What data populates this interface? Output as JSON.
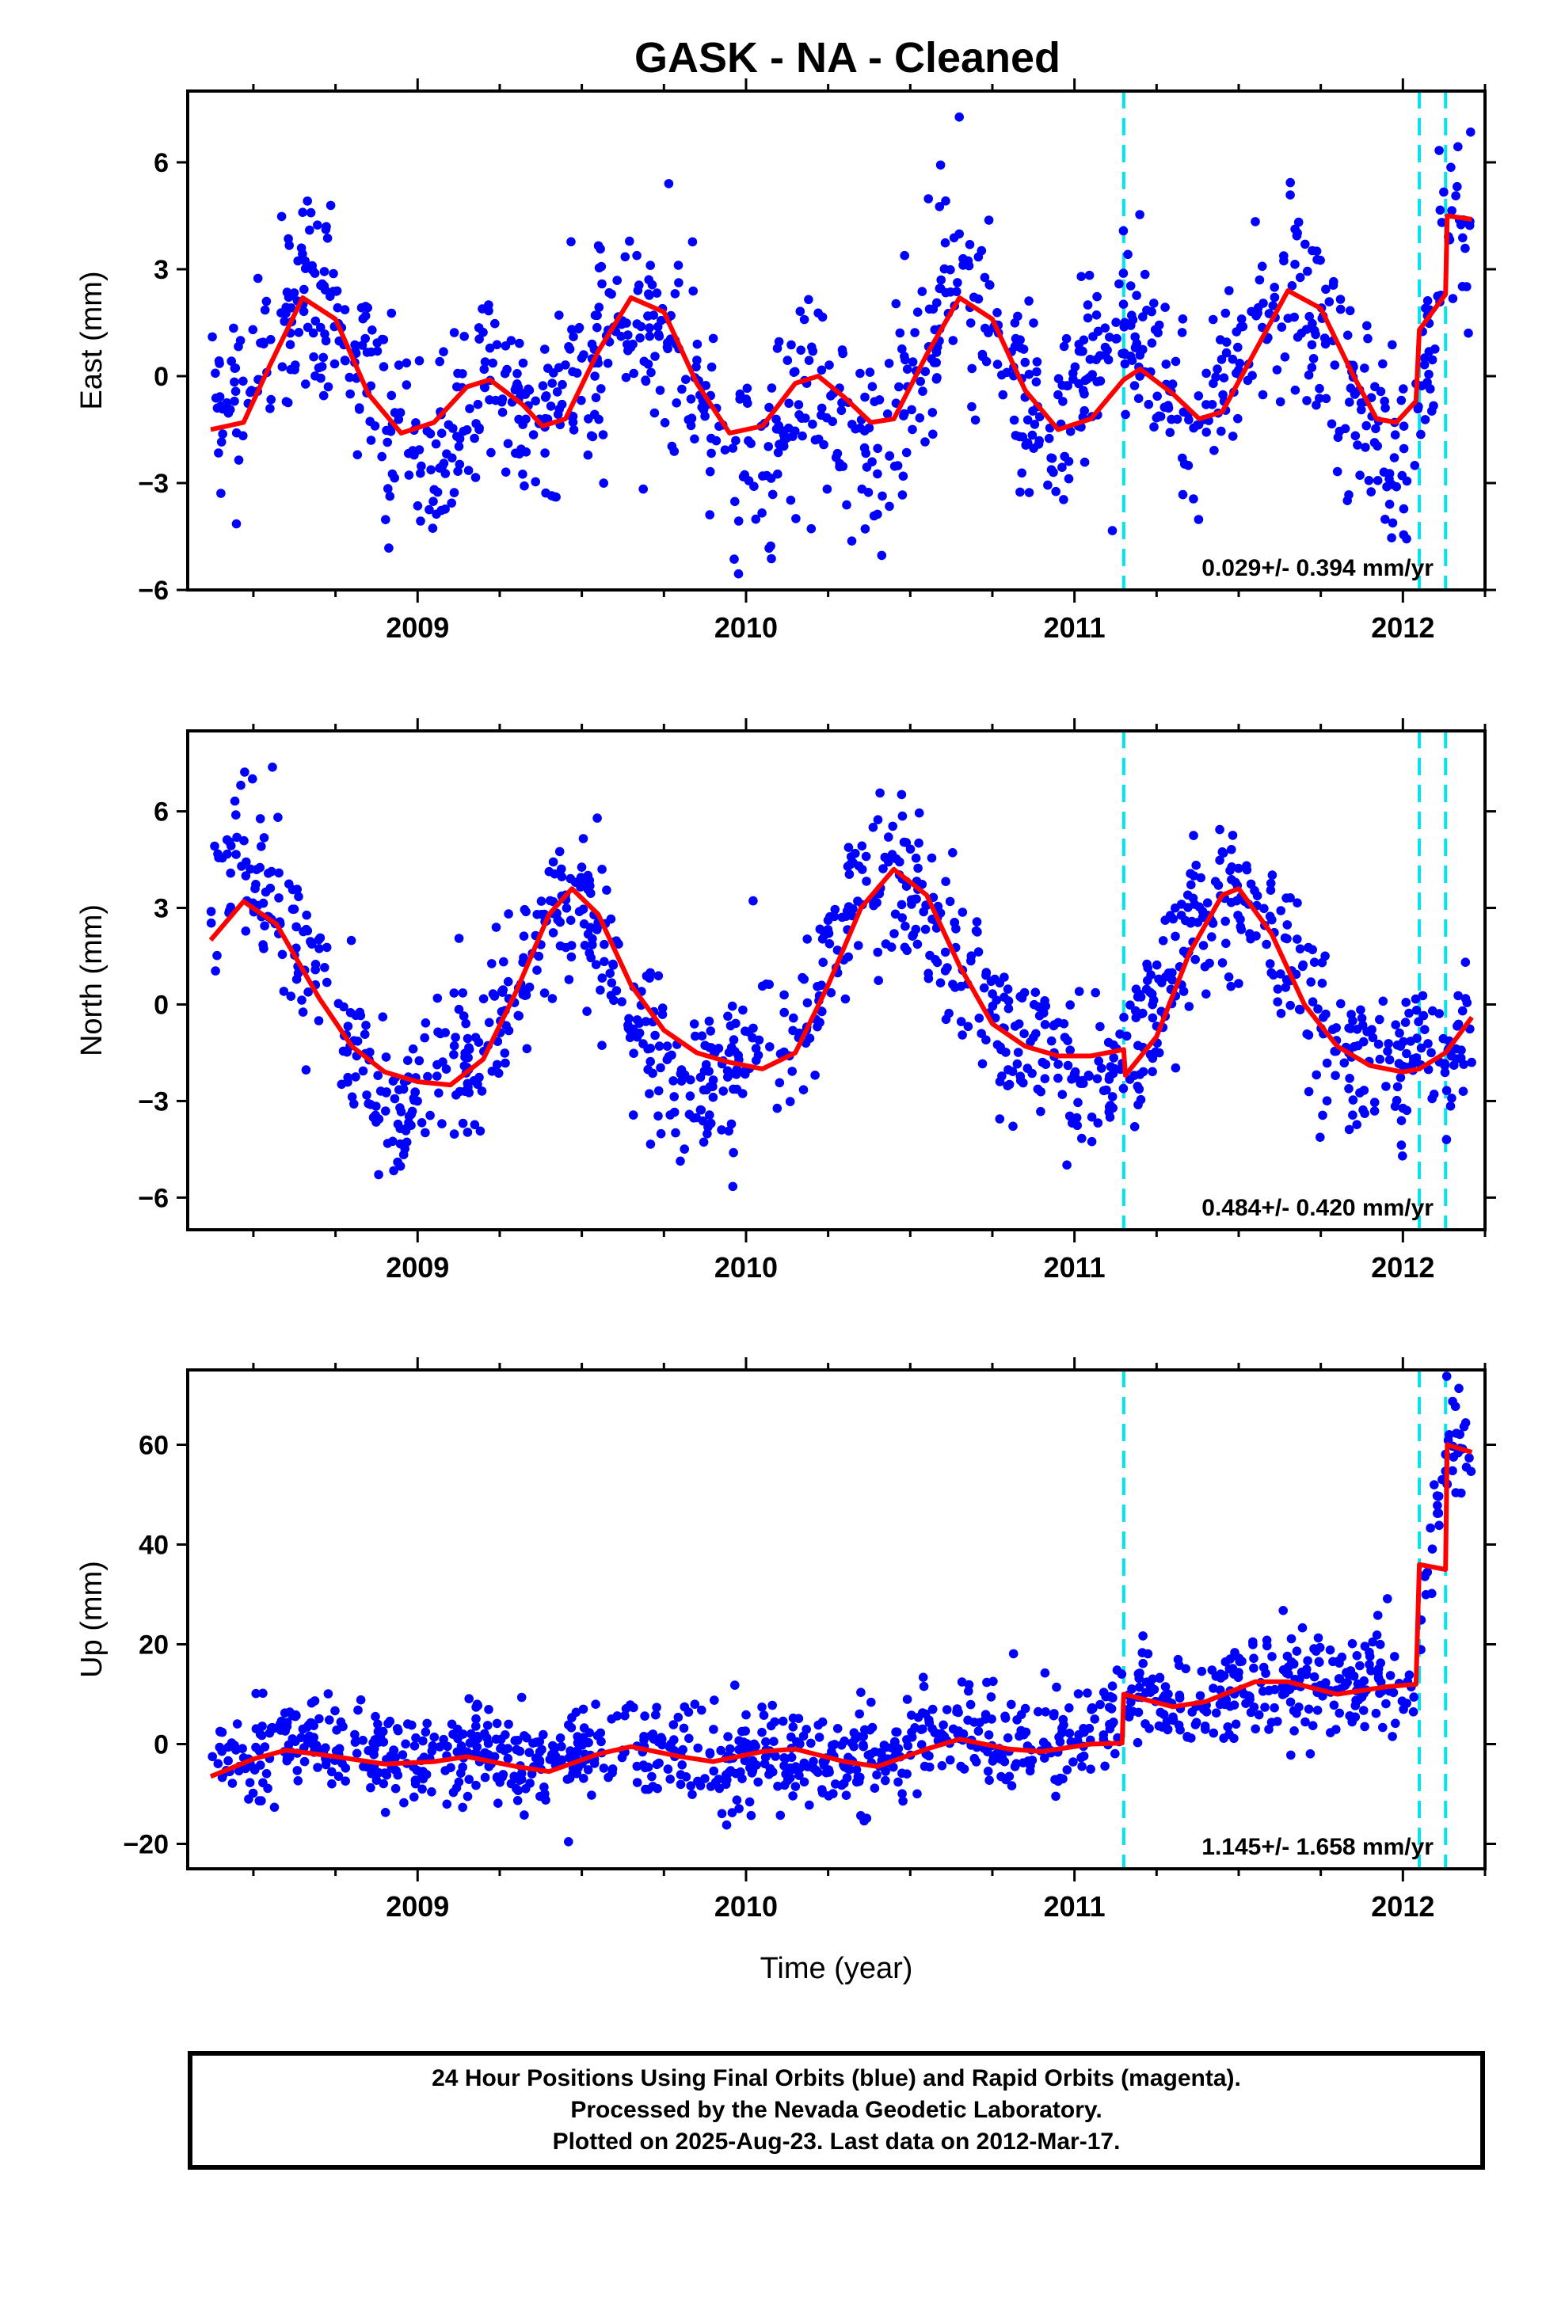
{
  "title": "GASK  - NA - Cleaned",
  "xlabel": "Time (year)",
  "footer": {
    "lines": [
      "24 Hour Positions Using Final Orbits (blue) and Rapid Orbits (magenta).",
      "Processed by the Nevada Geodetic Laboratory.",
      "Plotted on 2025-Aug-23. Last data on 2012-Mar-17."
    ]
  },
  "colors": {
    "points": "#0000ff",
    "model": "#ff0000",
    "offsets": "#00e5ee",
    "frame": "#000000"
  },
  "chart_data": [
    {
      "type": "scatter",
      "panel": "east",
      "ylabel": "East (mm)",
      "xlim": [
        2008.3,
        2012.25
      ],
      "ylim": [
        -6,
        8
      ],
      "yticks": [
        -6,
        -3,
        0,
        3,
        6
      ],
      "xticks": [
        2009,
        2010,
        2011,
        2012
      ],
      "xtick_labels": [
        "2009",
        "2010",
        "2011",
        "2012"
      ],
      "rate": "0.029+/- 0.394 mm/yr",
      "offsets": [
        2011.15,
        2012.05,
        2012.13
      ],
      "data_start": 2008.37,
      "data_end": 2012.21,
      "scatter_sigma": 1.35,
      "model": [
        [
          2008.37,
          -1.5
        ],
        [
          2008.47,
          -1.3
        ],
        [
          2008.55,
          0.3
        ],
        [
          2008.65,
          2.2
        ],
        [
          2008.75,
          1.6
        ],
        [
          2008.85,
          -0.5
        ],
        [
          2008.95,
          -1.6
        ],
        [
          2009.05,
          -1.3
        ],
        [
          2009.15,
          -0.3
        ],
        [
          2009.22,
          -0.1
        ],
        [
          2009.32,
          -0.8
        ],
        [
          2009.38,
          -1.4
        ],
        [
          2009.45,
          -1.2
        ],
        [
          2009.55,
          0.7
        ],
        [
          2009.65,
          2.2
        ],
        [
          2009.75,
          1.8
        ],
        [
          2009.85,
          -0.2
        ],
        [
          2009.95,
          -1.6
        ],
        [
          2010.05,
          -1.4
        ],
        [
          2010.15,
          -0.2
        ],
        [
          2010.22,
          0.0
        ],
        [
          2010.3,
          -0.6
        ],
        [
          2010.38,
          -1.3
        ],
        [
          2010.45,
          -1.2
        ],
        [
          2010.55,
          0.6
        ],
        [
          2010.65,
          2.2
        ],
        [
          2010.75,
          1.6
        ],
        [
          2010.85,
          -0.4
        ],
        [
          2010.95,
          -1.5
        ],
        [
          2011.05,
          -1.2
        ],
        [
          2011.15,
          -0.1
        ],
        [
          2011.2,
          0.2
        ],
        [
          2011.3,
          -0.5
        ],
        [
          2011.38,
          -1.2
        ],
        [
          2011.45,
          -1.0
        ],
        [
          2011.55,
          0.7
        ],
        [
          2011.65,
          2.4
        ],
        [
          2011.75,
          1.9
        ],
        [
          2011.85,
          0.0
        ],
        [
          2011.92,
          -1.2
        ],
        [
          2011.98,
          -1.3
        ],
        [
          2012.04,
          -0.7
        ],
        [
          2012.05,
          1.3
        ],
        [
          2012.13,
          2.3
        ],
        [
          2012.135,
          4.5
        ],
        [
          2012.21,
          4.4
        ]
      ],
      "clusters": [
        [
          2008.37,
          -1.3
        ],
        [
          2008.45,
          -0.4
        ],
        [
          2008.55,
          0.7
        ],
        [
          2008.65,
          2.0
        ],
        [
          2008.75,
          1.4
        ],
        [
          2008.85,
          0.1
        ],
        [
          2008.95,
          -1.3
        ],
        [
          2009.05,
          -2.0
        ],
        [
          2009.15,
          -0.6
        ],
        [
          2009.25,
          0.1
        ],
        [
          2009.35,
          -1.3
        ],
        [
          2009.45,
          -0.7
        ],
        [
          2009.55,
          0.9
        ],
        [
          2009.65,
          2.3
        ],
        [
          2009.75,
          1.6
        ],
        [
          2009.85,
          -0.2
        ],
        [
          2009.95,
          -2.2
        ],
        [
          2010.05,
          -3.0
        ],
        [
          2010.15,
          -0.6
        ],
        [
          2010.25,
          -0.7
        ],
        [
          2010.35,
          -2.2
        ],
        [
          2010.45,
          -1.3
        ],
        [
          2010.55,
          1.1
        ],
        [
          2010.65,
          3.0
        ],
        [
          2010.75,
          1.4
        ],
        [
          2010.85,
          -0.6
        ],
        [
          2010.95,
          -1.6
        ],
        [
          2011.05,
          0.2
        ],
        [
          2011.15,
          1.6
        ],
        [
          2011.25,
          0.6
        ],
        [
          2011.35,
          -1.6
        ],
        [
          2011.45,
          -0.3
        ],
        [
          2011.55,
          1.1
        ],
        [
          2011.65,
          2.1
        ],
        [
          2011.75,
          1.4
        ],
        [
          2011.85,
          -0.4
        ],
        [
          2011.95,
          -2.4
        ],
        [
          2012.03,
          -2.3
        ],
        [
          2012.13,
          4.5
        ],
        [
          2012.21,
          4.0
        ]
      ]
    },
    {
      "type": "scatter",
      "panel": "north",
      "ylabel": "North (mm)",
      "xlim": [
        2008.3,
        2012.25
      ],
      "ylim": [
        -7,
        8.5
      ],
      "yticks": [
        -6,
        -3,
        0,
        3,
        6
      ],
      "xticks": [
        2009,
        2010,
        2011,
        2012
      ],
      "xtick_labels": [
        "2009",
        "2010",
        "2011",
        "2012"
      ],
      "rate": "0.484+/- 0.420 mm/yr",
      "offsets": [
        2011.15,
        2012.05,
        2012.13
      ],
      "data_start": 2008.37,
      "data_end": 2012.21,
      "scatter_sigma": 1.2,
      "model": [
        [
          2008.37,
          2.0
        ],
        [
          2008.47,
          3.2
        ],
        [
          2008.57,
          2.5
        ],
        [
          2008.7,
          0.2
        ],
        [
          2008.8,
          -1.3
        ],
        [
          2008.9,
          -2.1
        ],
        [
          2009.0,
          -2.4
        ],
        [
          2009.1,
          -2.5
        ],
        [
          2009.2,
          -1.7
        ],
        [
          2009.3,
          0.4
        ],
        [
          2009.4,
          2.8
        ],
        [
          2009.47,
          3.6
        ],
        [
          2009.55,
          2.8
        ],
        [
          2009.65,
          0.6
        ],
        [
          2009.75,
          -0.8
        ],
        [
          2009.85,
          -1.5
        ],
        [
          2009.95,
          -1.8
        ],
        [
          2010.05,
          -2.0
        ],
        [
          2010.15,
          -1.5
        ],
        [
          2010.25,
          0.6
        ],
        [
          2010.35,
          3.0
        ],
        [
          2010.45,
          4.2
        ],
        [
          2010.55,
          3.4
        ],
        [
          2010.65,
          1.2
        ],
        [
          2010.75,
          -0.6
        ],
        [
          2010.85,
          -1.3
        ],
        [
          2010.95,
          -1.6
        ],
        [
          2011.05,
          -1.6
        ],
        [
          2011.15,
          -1.4
        ],
        [
          2011.155,
          -2.2
        ],
        [
          2011.25,
          -1.0
        ],
        [
          2011.35,
          1.6
        ],
        [
          2011.45,
          3.4
        ],
        [
          2011.5,
          3.6
        ],
        [
          2011.6,
          2.2
        ],
        [
          2011.7,
          0.0
        ],
        [
          2011.8,
          -1.3
        ],
        [
          2011.9,
          -1.9
        ],
        [
          2012.0,
          -2.1
        ],
        [
          2012.05,
          -2.0
        ],
        [
          2012.13,
          -1.5
        ],
        [
          2012.21,
          -0.4
        ]
      ],
      "clusters": [
        [
          2008.37,
          2.5
        ],
        [
          2008.45,
          4.8
        ],
        [
          2008.55,
          3.4
        ],
        [
          2008.65,
          1.6
        ],
        [
          2008.75,
          -0.1
        ],
        [
          2008.85,
          -2.2
        ],
        [
          2008.95,
          -3.2
        ],
        [
          2009.05,
          -2.4
        ],
        [
          2009.15,
          -1.6
        ],
        [
          2009.25,
          -0.5
        ],
        [
          2009.35,
          1.5
        ],
        [
          2009.45,
          3.6
        ],
        [
          2009.55,
          2.6
        ],
        [
          2009.65,
          -0.9
        ],
        [
          2009.75,
          -1.8
        ],
        [
          2009.85,
          -2.3
        ],
        [
          2009.95,
          -2.0
        ],
        [
          2010.05,
          -1.0
        ],
        [
          2010.15,
          -1.8
        ],
        [
          2010.25,
          1.6
        ],
        [
          2010.35,
          3.9
        ],
        [
          2010.45,
          4.0
        ],
        [
          2010.55,
          3.0
        ],
        [
          2010.65,
          1.4
        ],
        [
          2010.75,
          -0.5
        ],
        [
          2010.85,
          -1.6
        ],
        [
          2010.95,
          -1.3
        ],
        [
          2011.05,
          -2.6
        ],
        [
          2011.12,
          -2.0
        ],
        [
          2011.25,
          -0.1
        ],
        [
          2011.35,
          2.2
        ],
        [
          2011.45,
          3.6
        ],
        [
          2011.55,
          2.8
        ],
        [
          2011.65,
          1.2
        ],
        [
          2011.75,
          -0.3
        ],
        [
          2011.85,
          -1.3
        ],
        [
          2011.95,
          -1.8
        ],
        [
          2012.03,
          -1.4
        ],
        [
          2012.13,
          -2.0
        ],
        [
          2012.21,
          0.4
        ]
      ]
    },
    {
      "type": "scatter",
      "panel": "up",
      "ylabel": "Up (mm)",
      "xlim": [
        2008.3,
        2012.25
      ],
      "ylim": [
        -25,
        75
      ],
      "yticks": [
        -20,
        0,
        20,
        40,
        60
      ],
      "xticks": [
        2009,
        2010,
        2011,
        2012
      ],
      "xtick_labels": [
        "2009",
        "2010",
        "2011",
        "2012"
      ],
      "rate": "1.145+/- 1.658 mm/yr",
      "offsets": [
        2011.15,
        2012.05,
        2012.13
      ],
      "data_start": 2008.37,
      "data_end": 2012.21,
      "scatter_sigma": 5.0,
      "model": [
        [
          2008.37,
          -6.5
        ],
        [
          2008.5,
          -3.0
        ],
        [
          2008.6,
          -1.2
        ],
        [
          2008.75,
          -2.5
        ],
        [
          2008.9,
          -4.0
        ],
        [
          2009.05,
          -3.5
        ],
        [
          2009.15,
          -2.5
        ],
        [
          2009.3,
          -4.5
        ],
        [
          2009.4,
          -5.5
        ],
        [
          2009.55,
          -2.0
        ],
        [
          2009.65,
          -0.5
        ],
        [
          2009.8,
          -2.5
        ],
        [
          2009.9,
          -3.5
        ],
        [
          2010.05,
          -1.5
        ],
        [
          2010.15,
          -1.0
        ],
        [
          2010.3,
          -3.5
        ],
        [
          2010.4,
          -4.5
        ],
        [
          2010.55,
          -1.0
        ],
        [
          2010.65,
          1.0
        ],
        [
          2010.8,
          -1.0
        ],
        [
          2010.9,
          -1.5
        ],
        [
          2011.05,
          0.0
        ],
        [
          2011.145,
          0.2
        ],
        [
          2011.15,
          10.0
        ],
        [
          2011.3,
          7.5
        ],
        [
          2011.4,
          8.5
        ],
        [
          2011.55,
          12.5
        ],
        [
          2011.65,
          12.5
        ],
        [
          2011.8,
          10.0
        ],
        [
          2011.95,
          11.5
        ],
        [
          2012.04,
          12.0
        ],
        [
          2012.05,
          36.0
        ],
        [
          2012.13,
          35.0
        ],
        [
          2012.135,
          60.0
        ],
        [
          2012.21,
          58.5
        ]
      ],
      "clusters": [
        [
          2008.37,
          -4
        ],
        [
          2008.5,
          -2
        ],
        [
          2008.6,
          2
        ],
        [
          2008.75,
          -1
        ],
        [
          2008.9,
          -4
        ],
        [
          2009.05,
          -3
        ],
        [
          2009.2,
          -2
        ],
        [
          2009.35,
          -5
        ],
        [
          2009.5,
          -3
        ],
        [
          2009.65,
          0
        ],
        [
          2009.8,
          -2
        ],
        [
          2009.95,
          -4
        ],
        [
          2010.1,
          -1
        ],
        [
          2010.25,
          -2
        ],
        [
          2010.4,
          -5
        ],
        [
          2010.55,
          0
        ],
        [
          2010.65,
          3
        ],
        [
          2010.8,
          0
        ],
        [
          2010.95,
          0
        ],
        [
          2011.05,
          2
        ],
        [
          2011.2,
          10
        ],
        [
          2011.35,
          8
        ],
        [
          2011.5,
          11
        ],
        [
          2011.65,
          13
        ],
        [
          2011.8,
          12
        ],
        [
          2011.95,
          13
        ],
        [
          2012.03,
          10
        ],
        [
          2012.13,
          60
        ],
        [
          2012.21,
          57
        ]
      ]
    }
  ]
}
